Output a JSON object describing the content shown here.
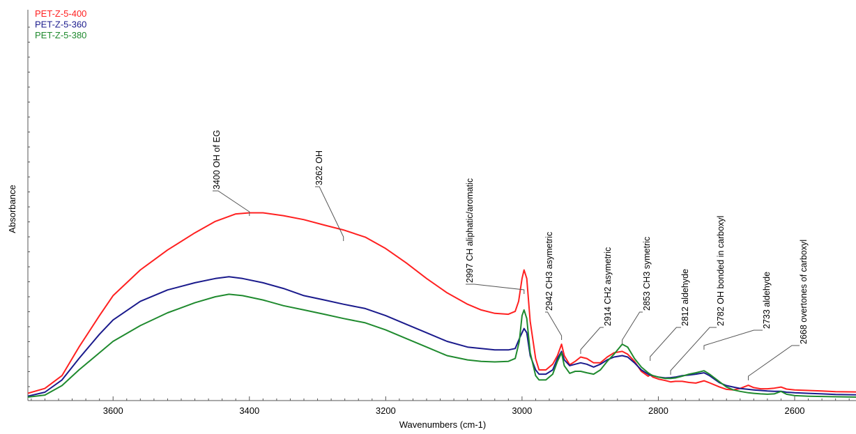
{
  "chart_data": {
    "type": "line",
    "xlabel": "Wavenumbers (cm-1)",
    "ylabel": "Absorbance",
    "xlim": [
      3725,
      2510
    ],
    "ylim": [
      0,
      1
    ],
    "x_reversed": true,
    "grid": false,
    "legend_position": "top-left",
    "x_ticks": [
      3600,
      3400,
      3200,
      3000,
      2800,
      2600
    ],
    "series": [
      {
        "name": "PET-Z-5-400",
        "color": "#ff2020",
        "points": [
          [
            3725,
            0.018
          ],
          [
            3700,
            0.035
          ],
          [
            3675,
            0.08
          ],
          [
            3650,
            0.18
          ],
          [
            3620,
            0.29
          ],
          [
            3600,
            0.36
          ],
          [
            3560,
            0.45
          ],
          [
            3520,
            0.52
          ],
          [
            3480,
            0.58
          ],
          [
            3450,
            0.62
          ],
          [
            3420,
            0.646
          ],
          [
            3400,
            0.65
          ],
          [
            3380,
            0.65
          ],
          [
            3350,
            0.64
          ],
          [
            3320,
            0.626
          ],
          [
            3290,
            0.607
          ],
          [
            3262,
            0.59
          ],
          [
            3230,
            0.565
          ],
          [
            3200,
            0.525
          ],
          [
            3170,
            0.475
          ],
          [
            3140,
            0.42
          ],
          [
            3110,
            0.37
          ],
          [
            3080,
            0.33
          ],
          [
            3060,
            0.31
          ],
          [
            3040,
            0.298
          ],
          [
            3020,
            0.295
          ],
          [
            3010,
            0.305
          ],
          [
            3005,
            0.34
          ],
          [
            3000,
            0.42
          ],
          [
            2997,
            0.45
          ],
          [
            2993,
            0.42
          ],
          [
            2988,
            0.27
          ],
          [
            2980,
            0.14
          ],
          [
            2975,
            0.1
          ],
          [
            2965,
            0.1
          ],
          [
            2955,
            0.12
          ],
          [
            2948,
            0.15
          ],
          [
            2942,
            0.19
          ],
          [
            2938,
            0.15
          ],
          [
            2930,
            0.118
          ],
          [
            2922,
            0.13
          ],
          [
            2914,
            0.145
          ],
          [
            2905,
            0.14
          ],
          [
            2895,
            0.125
          ],
          [
            2885,
            0.125
          ],
          [
            2875,
            0.145
          ],
          [
            2865,
            0.16
          ],
          [
            2853,
            0.165
          ],
          [
            2845,
            0.155
          ],
          [
            2835,
            0.13
          ],
          [
            2825,
            0.095
          ],
          [
            2815,
            0.078
          ],
          [
            2812,
            0.083
          ],
          [
            2808,
            0.075
          ],
          [
            2800,
            0.068
          ],
          [
            2790,
            0.063
          ],
          [
            2782,
            0.058
          ],
          [
            2775,
            0.06
          ],
          [
            2765,
            0.06
          ],
          [
            2755,
            0.056
          ],
          [
            2745,
            0.054
          ],
          [
            2733,
            0.062
          ],
          [
            2725,
            0.055
          ],
          [
            2710,
            0.04
          ],
          [
            2700,
            0.032
          ],
          [
            2690,
            0.03
          ],
          [
            2680,
            0.035
          ],
          [
            2668,
            0.046
          ],
          [
            2660,
            0.038
          ],
          [
            2650,
            0.034
          ],
          [
            2640,
            0.034
          ],
          [
            2630,
            0.036
          ],
          [
            2620,
            0.04
          ],
          [
            2612,
            0.033
          ],
          [
            2600,
            0.03
          ],
          [
            2580,
            0.028
          ],
          [
            2560,
            0.026
          ],
          [
            2540,
            0.024
          ],
          [
            2510,
            0.023
          ]
        ]
      },
      {
        "name": "PET-Z-5-360",
        "color": "#1a1a8c",
        "points": [
          [
            3725,
            0.008
          ],
          [
            3700,
            0.022
          ],
          [
            3675,
            0.065
          ],
          [
            3650,
            0.14
          ],
          [
            3620,
            0.225
          ],
          [
            3600,
            0.275
          ],
          [
            3560,
            0.34
          ],
          [
            3520,
            0.38
          ],
          [
            3480,
            0.405
          ],
          [
            3450,
            0.42
          ],
          [
            3430,
            0.426
          ],
          [
            3410,
            0.42
          ],
          [
            3380,
            0.405
          ],
          [
            3350,
            0.385
          ],
          [
            3320,
            0.36
          ],
          [
            3290,
            0.345
          ],
          [
            3262,
            0.33
          ],
          [
            3230,
            0.315
          ],
          [
            3200,
            0.29
          ],
          [
            3170,
            0.26
          ],
          [
            3140,
            0.23
          ],
          [
            3110,
            0.2
          ],
          [
            3080,
            0.18
          ],
          [
            3060,
            0.175
          ],
          [
            3040,
            0.17
          ],
          [
            3020,
            0.17
          ],
          [
            3010,
            0.175
          ],
          [
            3003,
            0.215
          ],
          [
            2997,
            0.245
          ],
          [
            2993,
            0.23
          ],
          [
            2988,
            0.15
          ],
          [
            2980,
            0.1
          ],
          [
            2975,
            0.085
          ],
          [
            2965,
            0.085
          ],
          [
            2955,
            0.1
          ],
          [
            2948,
            0.14
          ],
          [
            2942,
            0.165
          ],
          [
            2938,
            0.135
          ],
          [
            2930,
            0.115
          ],
          [
            2922,
            0.12
          ],
          [
            2914,
            0.125
          ],
          [
            2905,
            0.12
          ],
          [
            2895,
            0.11
          ],
          [
            2885,
            0.12
          ],
          [
            2875,
            0.135
          ],
          [
            2865,
            0.145
          ],
          [
            2853,
            0.15
          ],
          [
            2845,
            0.145
          ],
          [
            2835,
            0.125
          ],
          [
            2825,
            0.1
          ],
          [
            2815,
            0.085
          ],
          [
            2812,
            0.082
          ],
          [
            2808,
            0.08
          ],
          [
            2800,
            0.075
          ],
          [
            2790,
            0.072
          ],
          [
            2782,
            0.073
          ],
          [
            2775,
            0.075
          ],
          [
            2765,
            0.08
          ],
          [
            2755,
            0.082
          ],
          [
            2745,
            0.085
          ],
          [
            2733,
            0.09
          ],
          [
            2725,
            0.08
          ],
          [
            2710,
            0.055
          ],
          [
            2700,
            0.045
          ],
          [
            2690,
            0.04
          ],
          [
            2680,
            0.035
          ],
          [
            2668,
            0.032
          ],
          [
            2660,
            0.03
          ],
          [
            2650,
            0.028
          ],
          [
            2640,
            0.026
          ],
          [
            2630,
            0.025
          ],
          [
            2620,
            0.025
          ],
          [
            2612,
            0.022
          ],
          [
            2600,
            0.02
          ],
          [
            2580,
            0.018
          ],
          [
            2560,
            0.016
          ],
          [
            2540,
            0.014
          ],
          [
            2510,
            0.013
          ]
        ]
      },
      {
        "name": "PET-Z-5-380",
        "color": "#1f8a2e",
        "points": [
          [
            3725,
            0.005
          ],
          [
            3700,
            0.012
          ],
          [
            3675,
            0.045
          ],
          [
            3650,
            0.1
          ],
          [
            3620,
            0.16
          ],
          [
            3600,
            0.2
          ],
          [
            3560,
            0.255
          ],
          [
            3520,
            0.3
          ],
          [
            3480,
            0.335
          ],
          [
            3450,
            0.356
          ],
          [
            3430,
            0.365
          ],
          [
            3410,
            0.36
          ],
          [
            3380,
            0.345
          ],
          [
            3350,
            0.325
          ],
          [
            3320,
            0.31
          ],
          [
            3290,
            0.295
          ],
          [
            3262,
            0.28
          ],
          [
            3230,
            0.265
          ],
          [
            3200,
            0.24
          ],
          [
            3170,
            0.21
          ],
          [
            3140,
            0.18
          ],
          [
            3110,
            0.15
          ],
          [
            3080,
            0.135
          ],
          [
            3060,
            0.13
          ],
          [
            3040,
            0.128
          ],
          [
            3020,
            0.13
          ],
          [
            3010,
            0.14
          ],
          [
            3004,
            0.2
          ],
          [
            3000,
            0.29
          ],
          [
            2997,
            0.31
          ],
          [
            2993,
            0.28
          ],
          [
            2988,
            0.16
          ],
          [
            2980,
            0.08
          ],
          [
            2975,
            0.065
          ],
          [
            2965,
            0.065
          ],
          [
            2955,
            0.085
          ],
          [
            2948,
            0.13
          ],
          [
            2942,
            0.16
          ],
          [
            2938,
            0.115
          ],
          [
            2930,
            0.088
          ],
          [
            2922,
            0.095
          ],
          [
            2914,
            0.095
          ],
          [
            2905,
            0.09
          ],
          [
            2895,
            0.085
          ],
          [
            2885,
            0.1
          ],
          [
            2875,
            0.13
          ],
          [
            2865,
            0.155
          ],
          [
            2853,
            0.19
          ],
          [
            2845,
            0.18
          ],
          [
            2835,
            0.14
          ],
          [
            2825,
            0.11
          ],
          [
            2815,
            0.09
          ],
          [
            2812,
            0.085
          ],
          [
            2808,
            0.08
          ],
          [
            2800,
            0.075
          ],
          [
            2790,
            0.07
          ],
          [
            2782,
            0.07
          ],
          [
            2775,
            0.072
          ],
          [
            2765,
            0.078
          ],
          [
            2755,
            0.085
          ],
          [
            2745,
            0.09
          ],
          [
            2733,
            0.097
          ],
          [
            2725,
            0.085
          ],
          [
            2710,
            0.058
          ],
          [
            2700,
            0.04
          ],
          [
            2690,
            0.03
          ],
          [
            2680,
            0.025
          ],
          [
            2668,
            0.02
          ],
          [
            2660,
            0.018
          ],
          [
            2650,
            0.016
          ],
          [
            2640,
            0.015
          ],
          [
            2630,
            0.016
          ],
          [
            2620,
            0.025
          ],
          [
            2612,
            0.015
          ],
          [
            2600,
            0.01
          ],
          [
            2580,
            0.008
          ],
          [
            2560,
            0.007
          ],
          [
            2540,
            0.006
          ],
          [
            2510,
            0.005
          ]
        ]
      }
    ],
    "annotations": [
      {
        "text": "3400 OH of EG",
        "x": 3400
      },
      {
        "text": "3262 OH",
        "x": 3262
      },
      {
        "text": "2997 CH aliphatic/aromatic",
        "x": 2997
      },
      {
        "text": "2942 CH3 asymetric",
        "x": 2942
      },
      {
        "text": "2914 CH2 asymetric",
        "x": 2914
      },
      {
        "text": "2853 CH3 symetric",
        "x": 2853
      },
      {
        "text": "2812 aldehyde",
        "x": 2812
      },
      {
        "text": "2782 OH bonded in carboxyl",
        "x": 2782
      },
      {
        "text": "2733 aldehyde",
        "x": 2733
      },
      {
        "text": "2668 overtones of carboxyl",
        "x": 2668
      }
    ]
  }
}
